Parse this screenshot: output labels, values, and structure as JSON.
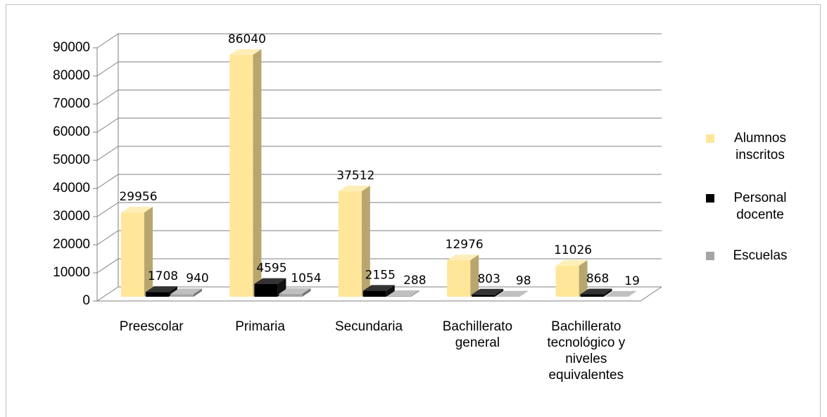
{
  "chart_data": {
    "type": "bar3d",
    "categories": [
      "Preescolar",
      "Primaria",
      "Secundaria",
      "Bachillerato general",
      "Bachillerato tecnológico y niveles equivalentes"
    ],
    "series": [
      {
        "name": "Alumnos inscritos",
        "color": "#ffe699",
        "values": [
          29956,
          86040,
          37512,
          12976,
          11026
        ]
      },
      {
        "name": "Personal docente",
        "color": "#000000",
        "values": [
          1708,
          4595,
          2155,
          803,
          868
        ]
      },
      {
        "name": "Escuelas",
        "color": "#a5a5a5",
        "values": [
          940,
          1054,
          288,
          98,
          19
        ]
      }
    ],
    "ylim": [
      0,
      90000
    ],
    "yticks": [
      0,
      10000,
      20000,
      30000,
      40000,
      50000,
      60000,
      70000,
      80000,
      90000
    ],
    "grid": true,
    "legend": "right"
  }
}
